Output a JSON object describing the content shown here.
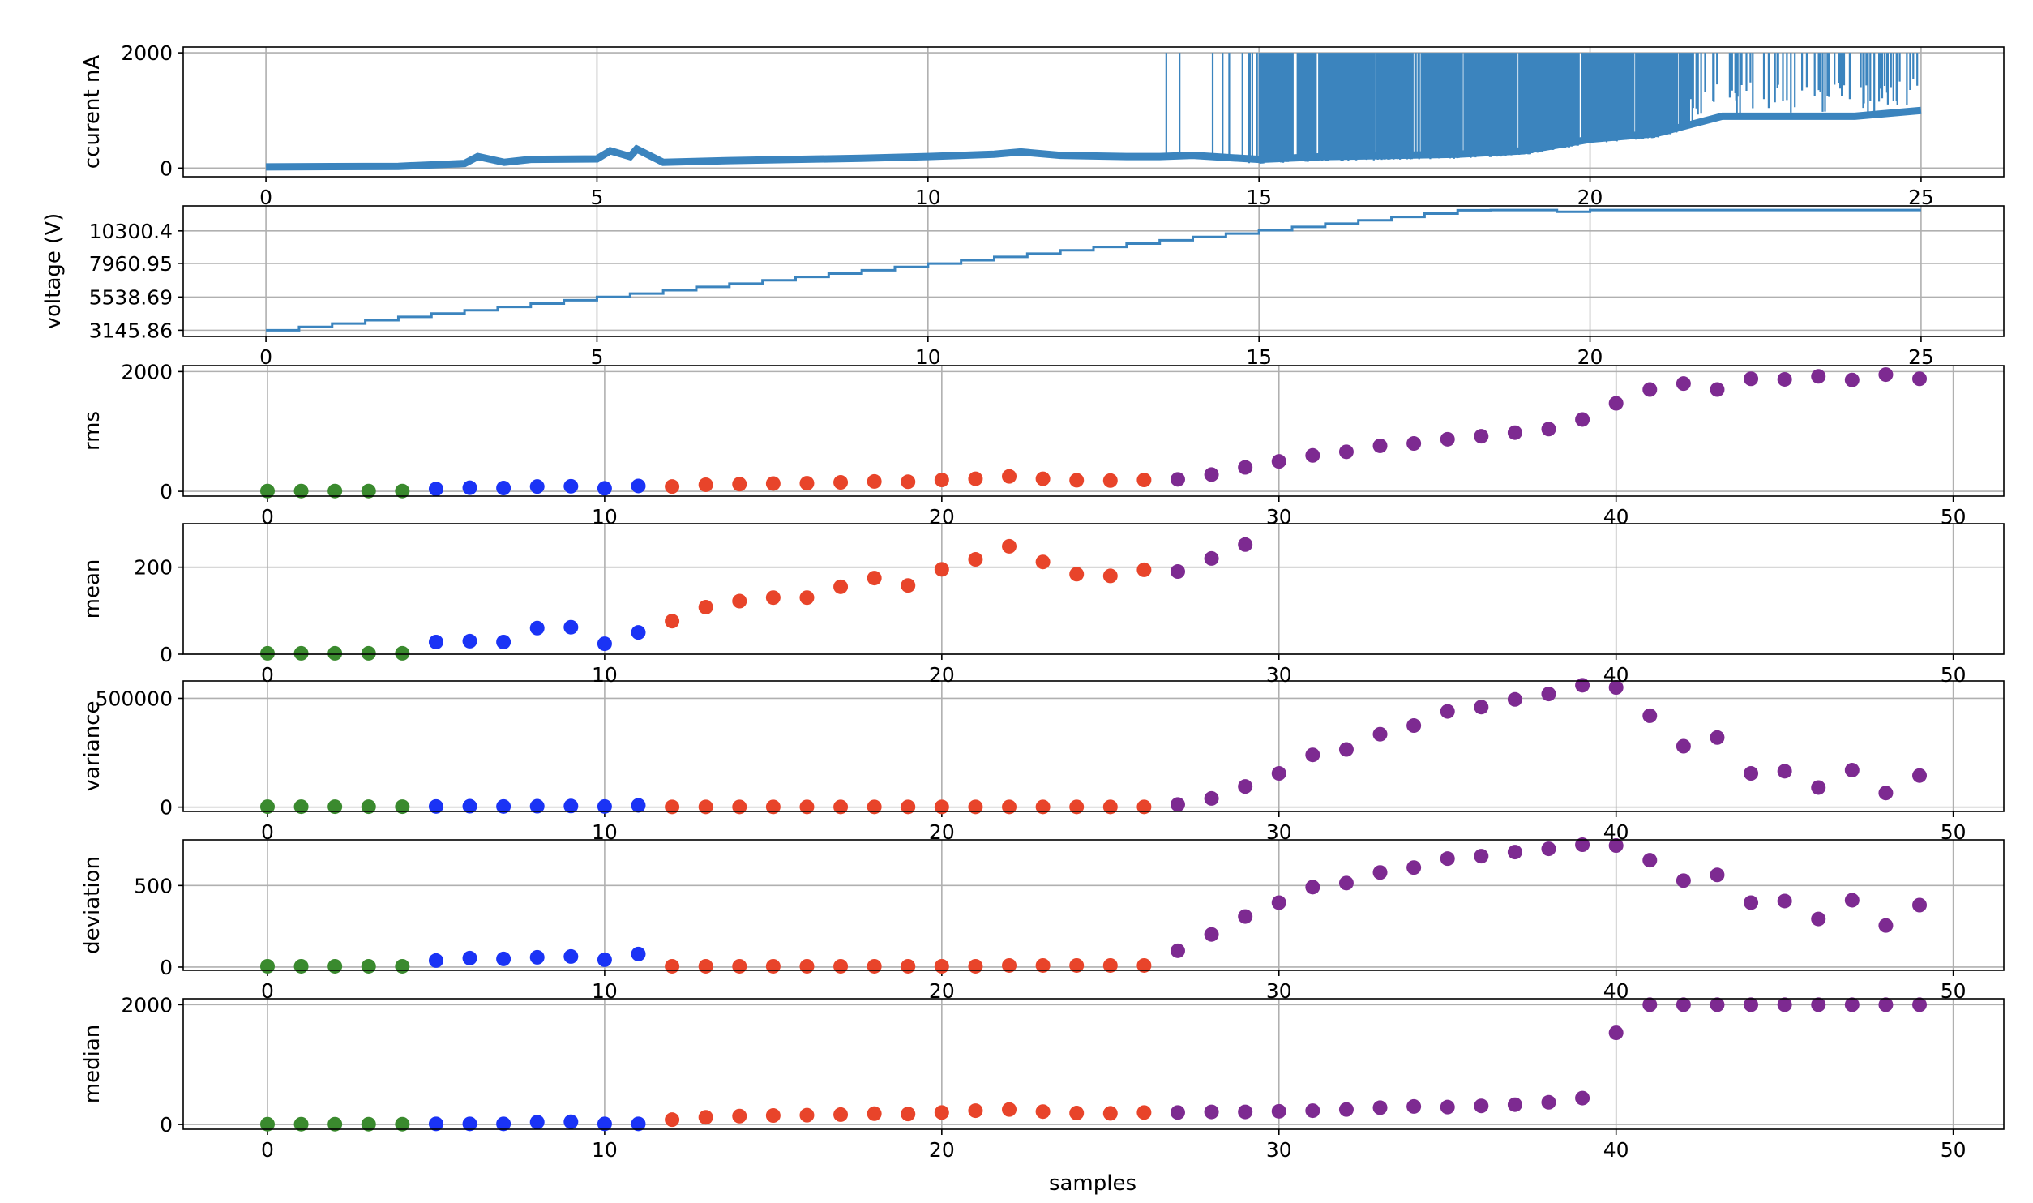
{
  "colors": {
    "line": "#3b84be",
    "group_green": "#3a8a2e",
    "group_blue": "#1a33f5",
    "group_red": "#e8442a",
    "group_purple": "#7d2a91",
    "grid": "#b0b0b0"
  },
  "chart_data": [
    {
      "type": "line",
      "ylabel": "ccurent nA",
      "xlim": [
        -1.25,
        26.25
      ],
      "ylim": [
        -150,
        2100
      ],
      "xticks": [
        "0",
        "5",
        "10",
        "15",
        "20",
        "25"
      ],
      "yticks": [
        "0",
        "2000"
      ],
      "grid": true,
      "description_of_signal": "",
      "x": [
        0,
        1,
        2,
        2.6,
        3,
        3.2,
        3.6,
        4,
        5,
        5.2,
        5.5,
        5.6,
        6,
        7,
        8,
        9,
        10,
        11,
        11.4,
        12,
        13,
        13.5,
        14,
        15,
        16,
        17,
        18,
        19,
        20,
        21,
        22,
        23,
        24,
        25
      ],
      "y": [
        20,
        25,
        30,
        60,
        80,
        200,
        100,
        150,
        160,
        300,
        200,
        330,
        100,
        130,
        150,
        170,
        200,
        240,
        280,
        220,
        200,
        200,
        220,
        150,
        200,
        220,
        240,
        300,
        500,
        600,
        900,
        900,
        900,
        1000
      ],
      "spike_max": 2000
    },
    {
      "type": "line",
      "ylabel": "voltage (V)",
      "xlim": [
        -1.25,
        26.25
      ],
      "ylim": [
        2700,
        12100
      ],
      "xticks": [
        "0",
        "5",
        "10",
        "15",
        "20",
        "25"
      ],
      "yticks": [
        "3145.86",
        "5538.69",
        "7960.95",
        "10300.4"
      ],
      "ytick_values": [
        3145.86,
        5538.69,
        7960.95,
        10300.4
      ],
      "grid": true,
      "step": 0.5,
      "start_value": 3145.86,
      "step_increment": 240,
      "plateau": 11800,
      "plateau_start": 18.5
    },
    {
      "type": "scatter",
      "ylabel": "rms",
      "xlim": [
        -2.5,
        51.5
      ],
      "ylim": [
        -80,
        2100
      ],
      "xticks": [
        "0",
        "10",
        "20",
        "30",
        "40",
        "50"
      ],
      "yticks": [
        "0",
        "2000"
      ],
      "grid": true,
      "groups": [
        {
          "range": [
            0,
            4
          ],
          "color": "group_green"
        },
        {
          "range": [
            5,
            11
          ],
          "color": "group_blue"
        },
        {
          "range": [
            12,
            26
          ],
          "color": "group_red"
        },
        {
          "range": [
            27,
            49
          ],
          "color": "group_purple"
        }
      ],
      "values": [
        5,
        5,
        5,
        5,
        5,
        40,
        60,
        55,
        80,
        85,
        50,
        90,
        80,
        110,
        120,
        130,
        135,
        150,
        165,
        160,
        190,
        210,
        250,
        210,
        185,
        180,
        190,
        200,
        280,
        400,
        500,
        600,
        660,
        760,
        800,
        870,
        920,
        980,
        1040,
        1200,
        1470,
        1700,
        1800,
        1700,
        1880,
        1870,
        1920,
        1860,
        1950,
        1880
      ]
    },
    {
      "type": "scatter",
      "ylabel": "mean",
      "xlim": [
        -2.5,
        51.5
      ],
      "ylim": [
        0,
        300
      ],
      "xticks": [
        "0",
        "10",
        "20",
        "30",
        "40",
        "50"
      ],
      "yticks": [
        "0",
        "200"
      ],
      "grid": true,
      "groups": [
        {
          "range": [
            0,
            4
          ],
          "color": "group_green"
        },
        {
          "range": [
            5,
            11
          ],
          "color": "group_blue"
        },
        {
          "range": [
            12,
            26
          ],
          "color": "group_red"
        },
        {
          "range": [
            27,
            29
          ],
          "color": "group_purple"
        }
      ],
      "values": [
        2,
        2,
        2,
        2,
        2,
        28,
        30,
        28,
        60,
        62,
        24,
        50,
        76,
        108,
        122,
        130,
        130,
        155,
        175,
        158,
        195,
        218,
        248,
        212,
        184,
        180,
        194,
        190,
        220,
        252
      ]
    },
    {
      "type": "scatter",
      "ylabel": "variance",
      "xlim": [
        -2.5,
        51.5
      ],
      "ylim": [
        -20000,
        580000
      ],
      "xticks": [
        "0",
        "10",
        "20",
        "30",
        "40",
        "50"
      ],
      "yticks": [
        "0",
        "500000"
      ],
      "grid": true,
      "groups": [
        {
          "range": [
            0,
            4
          ],
          "color": "group_green"
        },
        {
          "range": [
            5,
            11
          ],
          "color": "group_blue"
        },
        {
          "range": [
            12,
            26
          ],
          "color": "group_red"
        },
        {
          "range": [
            27,
            49
          ],
          "color": "group_purple"
        }
      ],
      "values": [
        2000,
        2000,
        2000,
        2000,
        2000,
        3000,
        4000,
        3000,
        4000,
        5000,
        3000,
        8000,
        1000,
        1000,
        1000,
        1000,
        1000,
        1000,
        1000,
        1000,
        1000,
        1000,
        1000,
        1000,
        1000,
        1000,
        1000,
        12000,
        40000,
        95000,
        155000,
        240000,
        265000,
        335000,
        375000,
        440000,
        460000,
        495000,
        520000,
        560000,
        550000,
        420000,
        280000,
        320000,
        155000,
        165000,
        90000,
        170000,
        65000,
        145000
      ]
    },
    {
      "type": "scatter",
      "ylabel": "deviation",
      "xlim": [
        -2.5,
        51.5
      ],
      "ylim": [
        -20,
        780
      ],
      "xticks": [
        "0",
        "10",
        "20",
        "30",
        "40",
        "50"
      ],
      "yticks": [
        "0",
        "500"
      ],
      "grid": true,
      "groups": [
        {
          "range": [
            0,
            4
          ],
          "color": "group_green"
        },
        {
          "range": [
            5,
            11
          ],
          "color": "group_blue"
        },
        {
          "range": [
            12,
            26
          ],
          "color": "group_red"
        },
        {
          "range": [
            27,
            49
          ],
          "color": "group_purple"
        }
      ],
      "values": [
        5,
        5,
        5,
        5,
        5,
        40,
        55,
        50,
        60,
        65,
        45,
        80,
        5,
        5,
        5,
        5,
        5,
        5,
        5,
        5,
        5,
        5,
        10,
        10,
        10,
        10,
        10,
        100,
        200,
        310,
        395,
        490,
        515,
        580,
        610,
        665,
        680,
        705,
        725,
        750,
        745,
        655,
        530,
        565,
        395,
        405,
        295,
        410,
        255,
        380
      ]
    },
    {
      "type": "scatter",
      "ylabel": "median",
      "xlabel": "samples",
      "xlim": [
        -2.5,
        51.5
      ],
      "ylim": [
        -80,
        2100
      ],
      "xticks": [
        "0",
        "10",
        "20",
        "30",
        "40",
        "50"
      ],
      "yticks": [
        "0",
        "2000"
      ],
      "grid": true,
      "groups": [
        {
          "range": [
            0,
            4
          ],
          "color": "group_green"
        },
        {
          "range": [
            5,
            11
          ],
          "color": "group_blue"
        },
        {
          "range": [
            12,
            26
          ],
          "color": "group_red"
        },
        {
          "range": [
            27,
            49
          ],
          "color": "group_purple"
        }
      ],
      "values": [
        5,
        5,
        5,
        5,
        5,
        10,
        10,
        10,
        40,
        45,
        10,
        10,
        80,
        120,
        140,
        150,
        155,
        165,
        180,
        175,
        200,
        230,
        250,
        215,
        190,
        185,
        200,
        200,
        210,
        210,
        220,
        230,
        250,
        280,
        300,
        290,
        310,
        330,
        370,
        440,
        1530,
        2000,
        2000,
        2000,
        2000,
        2000,
        2000,
        2000,
        2000,
        2000
      ]
    }
  ]
}
